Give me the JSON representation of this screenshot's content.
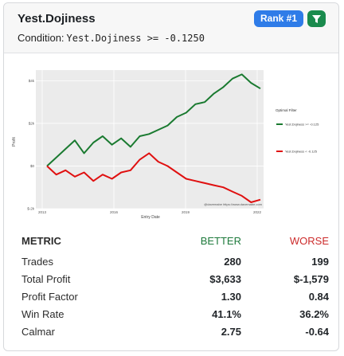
{
  "card": {
    "title": "Yest.Dojiness",
    "condition_label": "Condition:",
    "condition_code": "Yest.Dojiness >= -0.1250",
    "rank_badge": "Rank #1",
    "filter_icon": "filter-icon"
  },
  "colors": {
    "better": "#1a7a30",
    "worse": "#e01010",
    "rank": "#2f7ce8",
    "filter": "#1a8b4d"
  },
  "chart_data": {
    "type": "line",
    "title": "",
    "xlabel": "Entry Date",
    "ylabel": "Profit",
    "x_ticks": [
      "2013",
      "2016",
      "2019",
      "2022"
    ],
    "y_ticks": [
      "$-2k",
      "$0",
      "$2k",
      "$4k"
    ],
    "ylim": [
      -2000,
      4500
    ],
    "legend_title": "Optimal Filter",
    "watermark": "@davemabe https://www.davemabe.com",
    "series": [
      {
        "name": "Yest.Dojiness >= -0.125",
        "values": [
          0,
          400,
          800,
          1200,
          600,
          1100,
          1400,
          1000,
          1300,
          900,
          1400,
          1500,
          1700,
          1900,
          2300,
          2500,
          2900,
          3000,
          3400,
          3700,
          4100,
          4300,
          3900,
          3633
        ]
      },
      {
        "name": "Yest.Dojiness < -0.125",
        "values": [
          0,
          -400,
          -200,
          -500,
          -300,
          -700,
          -400,
          -600,
          -300,
          -200,
          300,
          600,
          200,
          0,
          -300,
          -600,
          -700,
          -800,
          -900,
          -1000,
          -1200,
          -1400,
          -1700,
          -1579
        ]
      }
    ]
  },
  "metrics": {
    "header": {
      "metric": "METRIC",
      "better": "BETTER",
      "worse": "WORSE"
    },
    "rows": [
      {
        "label": "Trades",
        "better": "280",
        "worse": "199"
      },
      {
        "label": "Total Profit",
        "better": "$3,633",
        "worse": "$-1,579"
      },
      {
        "label": "Profit Factor",
        "better": "1.30",
        "worse": "0.84"
      },
      {
        "label": "Win Rate",
        "better": "41.1%",
        "worse": "36.2%"
      },
      {
        "label": "Calmar",
        "better": "2.75",
        "worse": "-0.64"
      }
    ]
  }
}
